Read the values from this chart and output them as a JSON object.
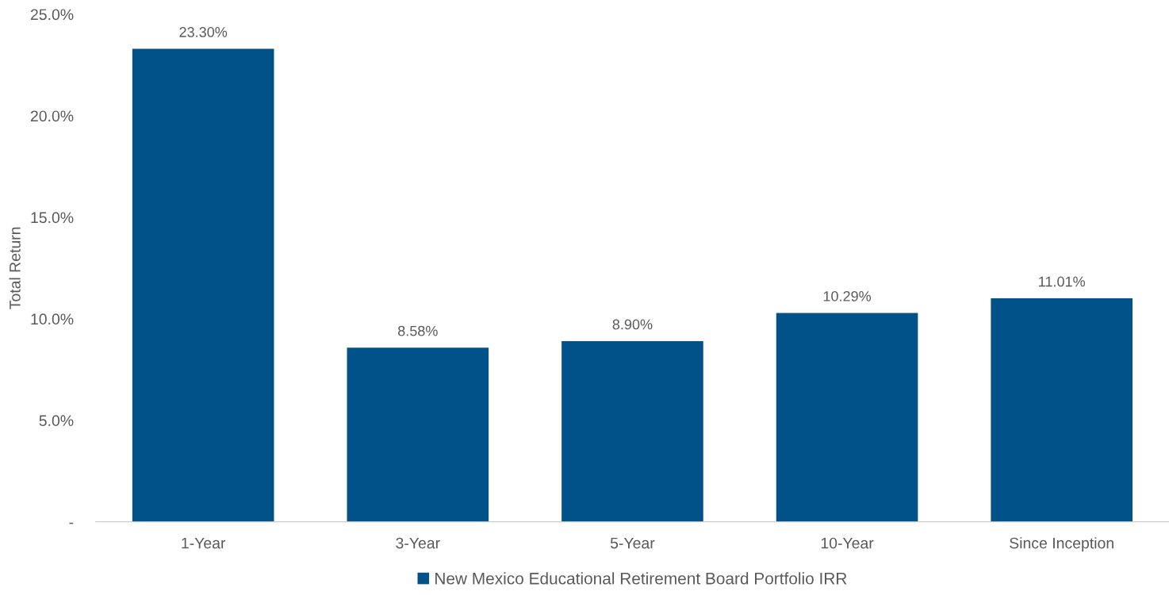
{
  "chart_data": {
    "type": "bar",
    "ylabel": "Total Return",
    "categories": [
      "1-Year",
      "3-Year",
      "5-Year",
      "10-Year",
      "Since Inception"
    ],
    "series": [
      {
        "name": "New Mexico Educational Retirement Board Portfolio IRR",
        "color": "#005288",
        "values": [
          23.3,
          8.58,
          8.9,
          10.29,
          11.01
        ],
        "value_labels": [
          "23.30%",
          "8.58%",
          "8.90%",
          "10.29%",
          "11.01%"
        ]
      }
    ],
    "ylim": [
      0,
      25
    ],
    "yticks": [
      {
        "value": 0,
        "label": "-"
      },
      {
        "value": 5,
        "label": "5.0%"
      },
      {
        "value": 10,
        "label": "10.0%"
      },
      {
        "value": 15,
        "label": "15.0%"
      },
      {
        "value": 20,
        "label": "20.0%"
      },
      {
        "value": 25,
        "label": "25.0%"
      }
    ],
    "grid": false,
    "legend": "bottom"
  }
}
